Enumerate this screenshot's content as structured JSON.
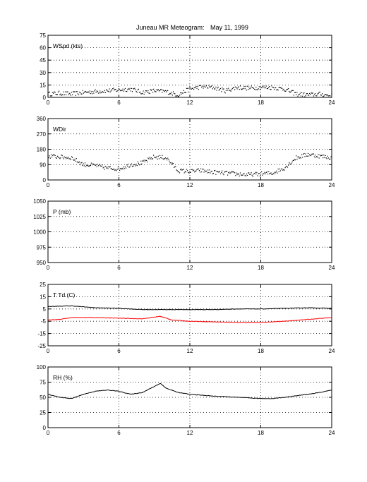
{
  "figure": {
    "title": "Juneau MR Meteogram:",
    "date": "May 11, 1999"
  },
  "chart_data": [
    {
      "type": "scatter",
      "label": "WSpd (kts)",
      "ylim": [
        0,
        75
      ],
      "yticks": [
        "0",
        "15",
        "30",
        "45",
        "60",
        "75"
      ],
      "xlim": [
        0,
        24
      ],
      "xticks": [
        "0",
        "6",
        "12",
        "18",
        "24"
      ],
      "grid": true,
      "series": [
        {
          "color": "#000000",
          "x": [
            0,
            1,
            2,
            3,
            4,
            5,
            6,
            7,
            8,
            9,
            10,
            11,
            12,
            13,
            14,
            15,
            16,
            17,
            18,
            19,
            20,
            21,
            22,
            23,
            24
          ],
          "y": [
            4,
            5,
            4,
            6,
            7,
            8,
            9,
            10,
            6,
            8,
            7,
            3,
            10,
            13,
            12,
            8,
            12,
            11,
            12,
            12,
            10,
            4,
            3,
            4,
            2
          ]
        }
      ]
    },
    {
      "type": "scatter",
      "label": "WDir",
      "ylim": [
        0,
        360
      ],
      "yticks": [
        "0",
        "90",
        "180",
        "270",
        "360"
      ],
      "xlim": [
        0,
        24
      ],
      "xticks": [
        "0",
        "6",
        "12",
        "18",
        "24"
      ],
      "grid": true,
      "series": [
        {
          "color": "#000000",
          "x": [
            0,
            1,
            2,
            3,
            4,
            5,
            6,
            7,
            8,
            9,
            10,
            11,
            12,
            13,
            14,
            15,
            16,
            17,
            18,
            19,
            20,
            21,
            22,
            23,
            24
          ],
          "y": [
            140,
            135,
            130,
            90,
            85,
            70,
            65,
            90,
            100,
            135,
            130,
            55,
            50,
            55,
            45,
            40,
            35,
            30,
            35,
            40,
            70,
            130,
            150,
            140,
            130
          ]
        }
      ]
    },
    {
      "type": "scatter",
      "label": "P (mb)",
      "ylim": [
        950,
        1050
      ],
      "yticks": [
        "950",
        "975",
        "1000",
        "1025",
        "1050"
      ],
      "xlim": [
        0,
        24
      ],
      "xticks": [
        "0",
        "6",
        "12",
        "18",
        "24"
      ],
      "grid": true,
      "series": []
    },
    {
      "type": "line",
      "label": "T Td (C)",
      "ylim": [
        -25,
        25
      ],
      "yticks": [
        "-25",
        "-15",
        "-5",
        "5",
        "15",
        "25"
      ],
      "xlim": [
        0,
        24
      ],
      "xticks": [
        "0",
        "6",
        "12",
        "18",
        "24"
      ],
      "grid": true,
      "series": [
        {
          "color": "#000000",
          "x": [
            0,
            2,
            4,
            6,
            8,
            10,
            12,
            14,
            16,
            18,
            20,
            22,
            24
          ],
          "y": [
            7,
            7.5,
            6,
            5.5,
            4.5,
            4.5,
            4.5,
            4.5,
            5,
            5,
            5.5,
            6,
            5.5
          ]
        },
        {
          "color": "#ff0000",
          "x": [
            0,
            1,
            2,
            4,
            6,
            8,
            9.5,
            10.5,
            12,
            14,
            16,
            18,
            20,
            22,
            24
          ],
          "y": [
            -4,
            -3.5,
            -2,
            -2,
            -2.5,
            -3,
            -1,
            -4,
            -5,
            -5.5,
            -6,
            -6,
            -5,
            -3.5,
            -2
          ]
        }
      ]
    },
    {
      "type": "line",
      "label": "RH (%)",
      "ylim": [
        0,
        100
      ],
      "yticks": [
        "0",
        "25",
        "50",
        "75",
        "100"
      ],
      "xlim": [
        0,
        24
      ],
      "xticks": [
        "0",
        "6",
        "12",
        "18",
        "24"
      ],
      "grid": true,
      "series": [
        {
          "color": "#000000",
          "x": [
            0,
            1,
            2,
            3,
            4,
            5,
            6,
            7,
            8,
            9,
            9.5,
            10,
            11,
            12,
            14,
            16,
            18,
            19,
            20,
            22,
            23,
            24
          ],
          "y": [
            55,
            50,
            48,
            55,
            60,
            62,
            60,
            55,
            58,
            68,
            73,
            65,
            58,
            55,
            52,
            50,
            48,
            48,
            50,
            55,
            58,
            62
          ]
        }
      ]
    }
  ]
}
